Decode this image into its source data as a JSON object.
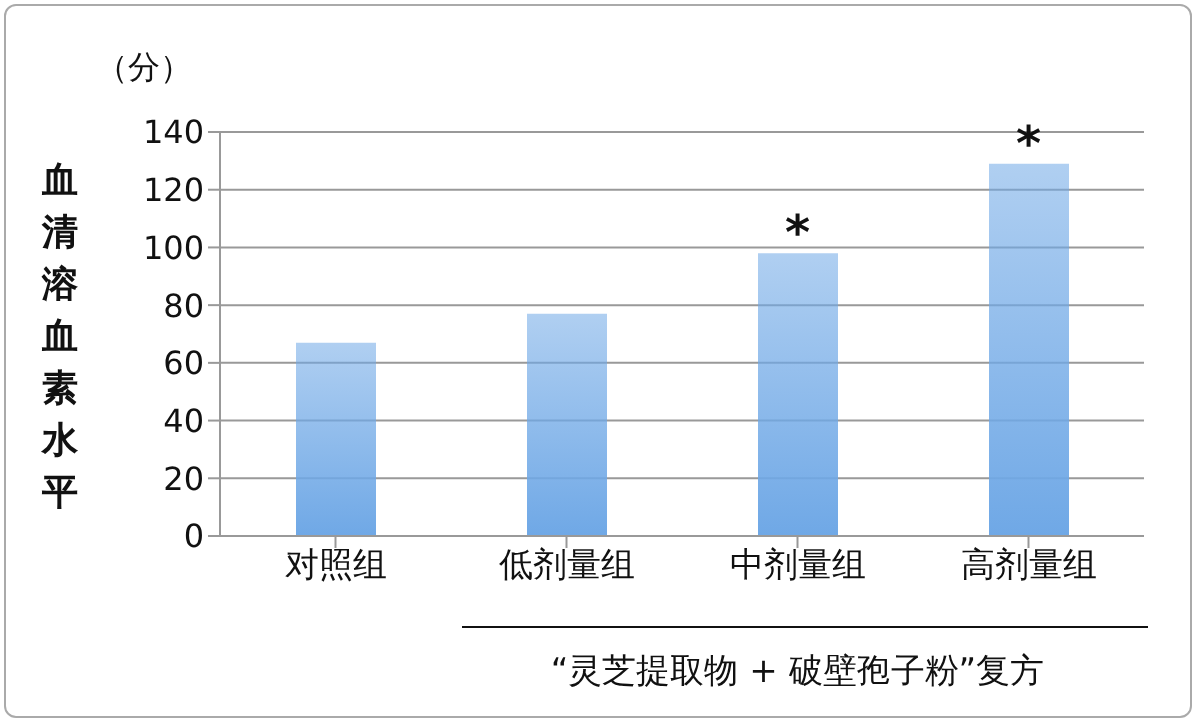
{
  "chart_data": {
    "type": "bar",
    "ylabel": "血清溶血素水平",
    "xlabel": "“灵芝提取物 + 破壁孢子粉”复方",
    "categories": [
      "对照组",
      "低剂量组",
      "中剂量组",
      "高剂量组"
    ],
    "values": [
      67,
      77,
      98,
      129
    ],
    "color": "#6fa8e6",
    "ylim": [
      0,
      140
    ],
    "yticks": [
      0,
      20,
      40,
      60,
      80,
      100,
      120,
      140
    ],
    "grid": "y",
    "annotations": [
      "（分）",
      {
        "text": "*",
        "x": "中剂量组",
        "y": 98
      },
      {
        "text": "*",
        "x": "高剂量组",
        "y": 129
      }
    ]
  }
}
